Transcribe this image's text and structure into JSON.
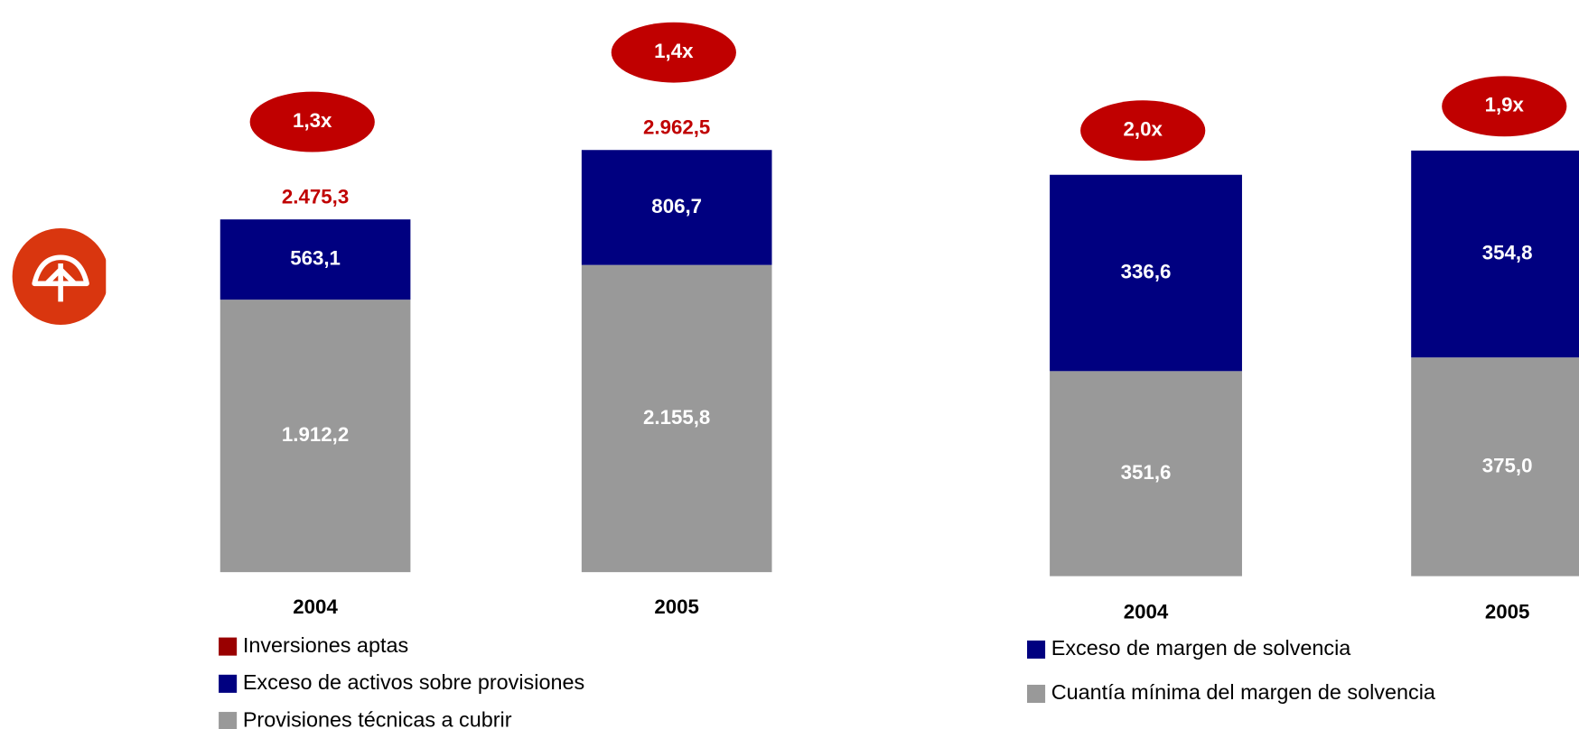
{
  "chart_data": [
    {
      "type": "stacked_bar",
      "categories": [
        "2004",
        "2005"
      ],
      "series": [
        {
          "name": "Provisiones técnicas a cubrir",
          "color": "#999999",
          "values": [
            1912.2,
            2155.8
          ],
          "value_labels": [
            "1.912,2",
            "2.155,8"
          ]
        },
        {
          "name": "Exceso de activos sobre provisiones",
          "color": "#000080",
          "values": [
            563.1,
            806.7
          ],
          "value_labels": [
            "563,1",
            "806,7"
          ]
        }
      ],
      "totals": {
        "name": "Inversiones aptas",
        "color": "#990000",
        "label_color": "#c00000",
        "values": [
          2475.3,
          2962.5
        ],
        "value_labels": [
          "2.475,3",
          "2.962,5"
        ]
      },
      "annotations": [
        {
          "value": 1.3,
          "label": "1,3x"
        },
        {
          "value": 1.4,
          "label": "1,4x"
        }
      ],
      "ylim": [
        0,
        3500
      ]
    },
    {
      "type": "stacked_bar",
      "categories": [
        "2004",
        "2005"
      ],
      "series": [
        {
          "name": "Cuantía mínima del margen de solvencia",
          "color": "#999999",
          "values": [
            351.6,
            375.0
          ],
          "value_labels": [
            "351,6",
            "375,0"
          ]
        },
        {
          "name": "Exceso de margen de solvencia",
          "color": "#000080",
          "values": [
            336.6,
            354.8
          ],
          "value_labels": [
            "336,6",
            "354,8"
          ]
        }
      ],
      "annotations": [
        {
          "value": 2.0,
          "label": "2,0x"
        },
        {
          "value": 1.9,
          "label": "1,9x"
        }
      ],
      "ylim": [
        0,
        850
      ]
    }
  ]
}
